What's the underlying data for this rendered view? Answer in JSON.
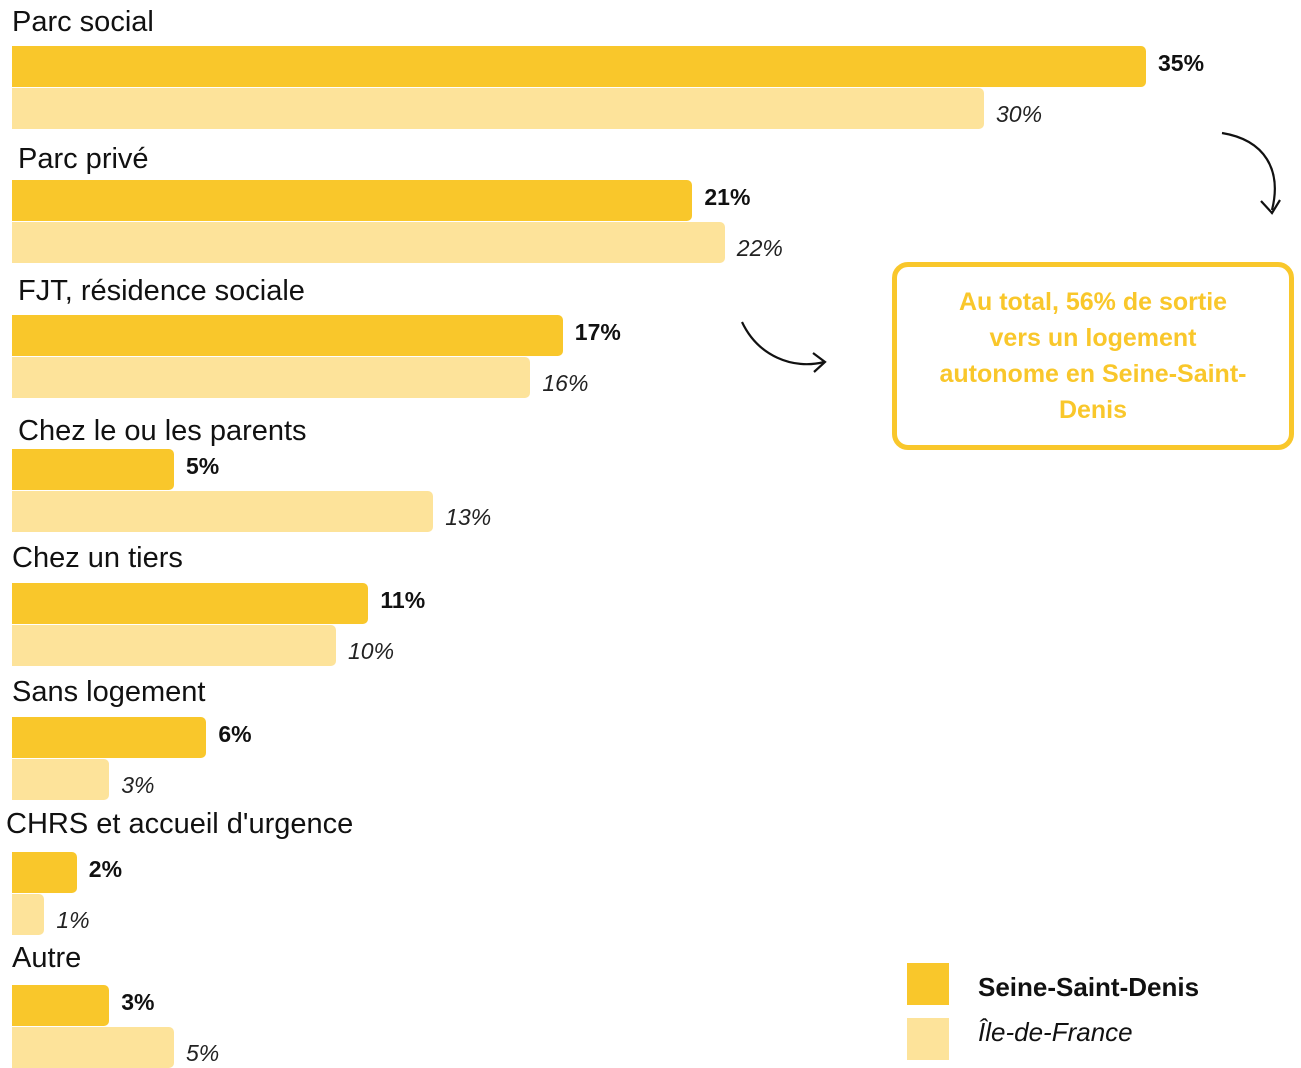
{
  "colors": {
    "seine_saint_denis": "#f9c72b",
    "ile_de_france": "#fde39a",
    "callout": "#f9c72b"
  },
  "chart_data": {
    "type": "bar",
    "orientation": "horizontal",
    "categories": [
      "Parc social",
      "Parc privé",
      "FJT, résidence sociale",
      "Chez le ou les parents",
      "Chez un tiers",
      "Sans logement",
      "CHRS et accueil d'urgence",
      "Autre"
    ],
    "series": [
      {
        "name": "Seine-Saint-Denis",
        "values": [
          35,
          21,
          17,
          5,
          11,
          6,
          2,
          3
        ],
        "labels": [
          "35%",
          "21%",
          "17%",
          "5%",
          "11%",
          "6%",
          "2%",
          "3%"
        ]
      },
      {
        "name": "Île-de-France",
        "values": [
          30,
          22,
          16,
          13,
          10,
          3,
          1,
          5
        ],
        "labels": [
          "30%",
          "22%",
          "16%",
          "13%",
          "10%",
          "3%",
          "1%",
          "5%"
        ]
      }
    ],
    "unit": "%",
    "grid": false,
    "legend": "bottom-right"
  },
  "callout": {
    "text": "Au total, 56% de sortie vers un logement autonome en Seine-Saint-Denis"
  },
  "legend": {
    "items": [
      {
        "label": "Seine-Saint-Denis"
      },
      {
        "label": "Île-de-France"
      }
    ]
  }
}
